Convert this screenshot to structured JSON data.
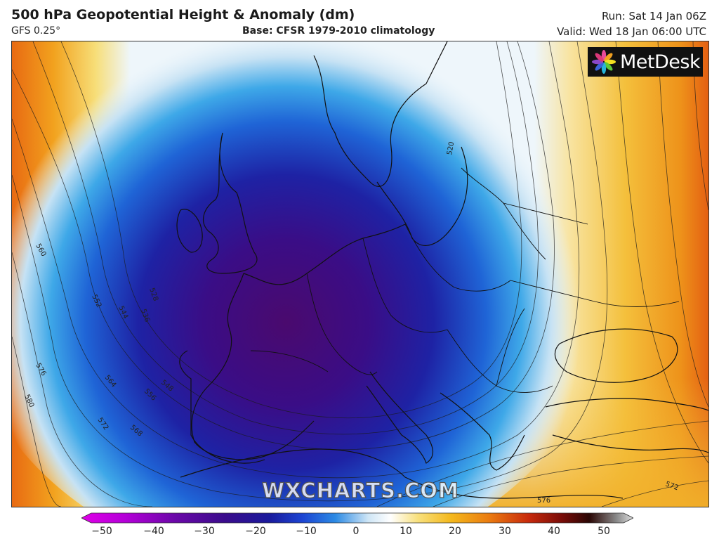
{
  "header": {
    "title": "500 hPa Geopotential Height & Anomaly (dm)",
    "model": "GFS 0.25°",
    "base": "Base: CFSR 1979-2010 climatology",
    "run": "Run: Sat 14 Jan 06Z",
    "valid": "Valid: Wed 18 Jan 06:00 UTC"
  },
  "logo": {
    "text": "MetDesk",
    "icon": "metdesk-flower-icon"
  },
  "watermark": "WXCHARTS.COM",
  "contour_labels": [
    "520",
    "560",
    "552",
    "544",
    "536",
    "528",
    "576",
    "564",
    "556",
    "548",
    "580",
    "572",
    "568",
    "572",
    "576"
  ],
  "colorbar": {
    "ticks": [
      "−50",
      "−40",
      "−30",
      "−20",
      "−10",
      "0",
      "10",
      "20",
      "30",
      "40",
      "50"
    ],
    "colors": [
      "#e000e8",
      "#9a00c8",
      "#4b0a8a",
      "#1a1a9c",
      "#1c44d2",
      "#2c8ae4",
      "#9cc8f0",
      "#ffffff",
      "#f8e07c",
      "#f4b81c",
      "#ea7a10",
      "#c82a0c",
      "#7a0c08",
      "#2a0604",
      "#cfcfcf"
    ]
  },
  "map": {
    "colors": {
      "strong_negative": "#4a0a6e",
      "negative": "#1e22a4",
      "weak_negative": "#3ea8e8",
      "neutral": "#eef6fb",
      "weak_positive": "#f5d870",
      "positive": "#f0a51c",
      "strong_positive": "#e05a10"
    }
  }
}
